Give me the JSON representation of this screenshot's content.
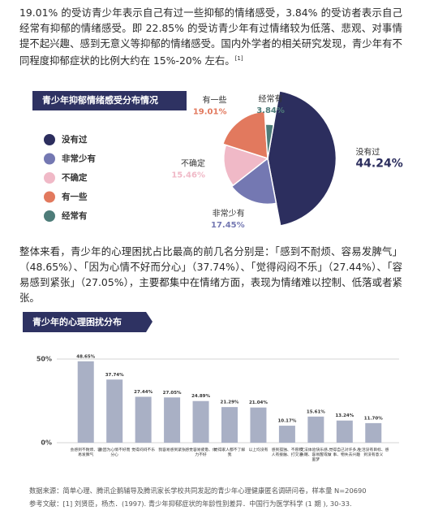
{
  "intro": {
    "text": "19.01% 的受访青少年表示自己有过一些抑郁的情绪感受，3.84% 的受访者表示自己经常有抑郁的情绪感受。即 22.85% 的受访青少年有过情绪较为低落、悲观、对事情提不起兴趣、感到无意义等抑郁的情绪感受。国内外学者的相关研究发现，青少年有不同程度抑郁症状的比例大约在 15%-20% 左右。",
    "ref": "[1]"
  },
  "summary": "整体来看，青少年的心理困扰占比最高的前几名分别是：「感到不耐烦、容易发脾气」（48.65%）、「因为心情不好而分心」（37.74%）、「觉得闷闷不乐」（27.44%）、「容易感到紧张」（27.05%），主要都集中在情绪方面，表现为情绪难以控制、低落或者紧张。",
  "footer": {
    "source": "数据来源：简单心理、腾讯企鹅辅导及腾讯家长学校共同发起的青少年心理健康匿名调研问卷，样本量 N=20690",
    "reference": "参考文献：[1] 刘贤臣，杨杰．(1997). 青少年抑郁症状的年龄性别差异．中国行为医学科学 (1 期 ), 30-33."
  },
  "chart_data": [
    {
      "type": "pie",
      "title": "青少年抑郁情绪感受分布情况",
      "categories": [
        "没有过",
        "非常少有",
        "不确定",
        "有一些",
        "经常有"
      ],
      "values": [
        44.24,
        17.45,
        15.46,
        19.01,
        3.84
      ],
      "value_labels": [
        "44.24%",
        "17.45%",
        "15.46%",
        "19.01%",
        "3.84%"
      ],
      "colors": [
        "#2c2e5e",
        "#7478b2",
        "#f0b9c7",
        "#e2795e",
        "#4e7c79"
      ]
    },
    {
      "type": "bar",
      "title": "青少年的心理困扰分布",
      "categories": [
        "会感到不耐烦、容易发脾气",
        "会因为心情不好而分心",
        "觉得闷闷不乐",
        "我容易感到紧张",
        "感觉容易疲惫、体力不好",
        "觉得家人都不了解我",
        "以上均没有",
        "感到孤独、不愿和人有接触、打交道",
        "无法体验快乐感、失眠、容易醒或做噩梦",
        "觉得自己对许多人、事、物失去兴趣",
        "生活没有目标、感到没有意义"
      ],
      "values": [
        48.65,
        37.74,
        27.44,
        27.05,
        24.89,
        21.29,
        21.04,
        10.17,
        15.61,
        13.24,
        11.7
      ],
      "value_labels": [
        "48.65%",
        "37.74%",
        "27.44%",
        "27.05%",
        "24.89%",
        "21.29%",
        "21.04%",
        "10.17%",
        "15.61%",
        "13.24%",
        "11.70%"
      ],
      "color": "#a9b0c5",
      "ylim": [
        0,
        50
      ],
      "yticks": [
        {
          "value": 0,
          "label": "0%"
        },
        {
          "value": 50,
          "label": "50%"
        }
      ]
    }
  ]
}
